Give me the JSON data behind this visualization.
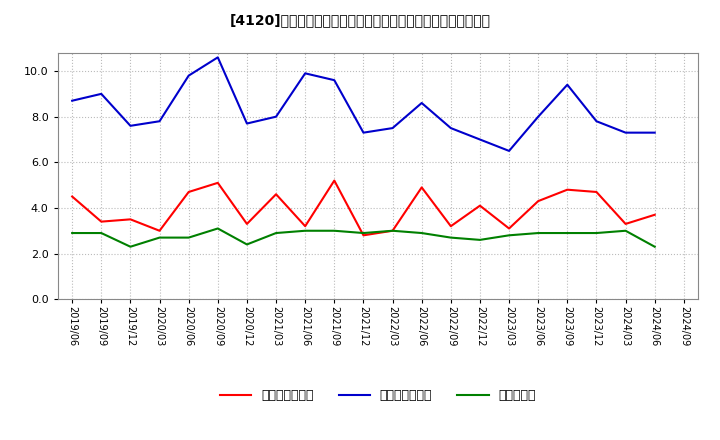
{
  "title": "[4120]  売上債権回転率、買入債務回転率、在庫回転率の推移",
  "x_labels": [
    "2019/06",
    "2019/09",
    "2019/12",
    "2020/03",
    "2020/06",
    "2020/09",
    "2020/12",
    "2021/03",
    "2021/06",
    "2021/09",
    "2021/12",
    "2022/03",
    "2022/06",
    "2022/09",
    "2022/12",
    "2023/03",
    "2023/06",
    "2023/09",
    "2023/12",
    "2024/03",
    "2024/06",
    "2024/09"
  ],
  "sales_receivable": [
    4.5,
    3.4,
    3.5,
    3.0,
    4.7,
    5.1,
    3.3,
    4.6,
    3.2,
    5.2,
    2.8,
    3.0,
    4.9,
    3.2,
    4.1,
    3.1,
    4.3,
    4.8,
    4.7,
    3.3,
    3.7,
    null
  ],
  "payable": [
    8.7,
    9.0,
    7.6,
    7.8,
    9.8,
    10.6,
    7.7,
    8.0,
    9.9,
    9.6,
    7.3,
    7.5,
    8.6,
    7.5,
    7.0,
    6.5,
    8.0,
    9.4,
    7.8,
    7.3,
    7.3,
    null
  ],
  "inventory": [
    2.9,
    2.9,
    2.3,
    2.7,
    2.7,
    3.1,
    2.4,
    2.9,
    3.0,
    3.0,
    2.9,
    3.0,
    2.9,
    2.7,
    2.6,
    2.8,
    2.9,
    2.9,
    2.9,
    3.0,
    2.3,
    null
  ],
  "sales_color": "#ff0000",
  "payable_color": "#0000cc",
  "inventory_color": "#008000",
  "ylim": [
    0.0,
    10.8
  ],
  "yticks": [
    0.0,
    2.0,
    4.0,
    6.0,
    8.0,
    10.0
  ],
  "legend_labels": [
    "売上債権回転率",
    "買入債務回転率",
    "在庫回転率"
  ],
  "bg_color": "#ffffff",
  "grid_color": "#bbbbbb",
  "title_str": "[4120]　売上債権回転率、買入債務回転率、在庫回転率の推移"
}
